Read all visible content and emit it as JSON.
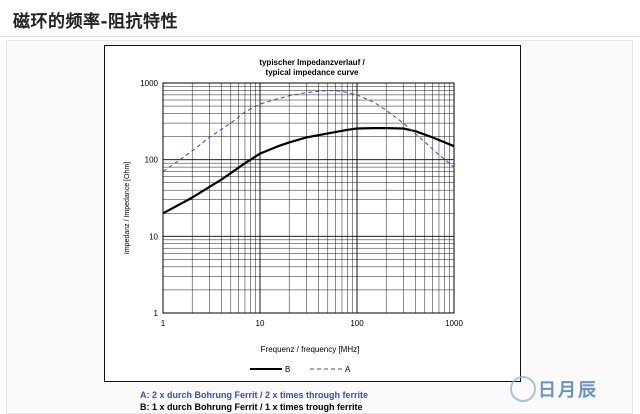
{
  "page": {
    "title": "磁环的频率-阻抗特性"
  },
  "watermark": {
    "text": "日月辰"
  },
  "chart_data": {
    "type": "line",
    "title_line1": "typischer Impedanzverlauf /",
    "title_line2": "typical impedance curve",
    "xlabel": "Frequenz / frequency [MHz]",
    "ylabel": "Impedanz / Impedance [Ohm]",
    "xscale": "log",
    "yscale": "log",
    "xlim": [
      1,
      1000
    ],
    "ylim": [
      1,
      1000
    ],
    "x_ticks": [
      "1",
      "10",
      "100",
      "1000"
    ],
    "y_ticks": [
      "1",
      "10",
      "100",
      "1000"
    ],
    "grid": true,
    "legend_position": "bottom",
    "series": [
      {
        "name": "B",
        "style": "solid",
        "color": "#000000",
        "x": [
          1,
          2,
          4,
          7,
          10,
          15,
          20,
          30,
          50,
          80,
          100,
          150,
          200,
          300,
          400,
          600,
          1000
        ],
        "y": [
          20,
          32,
          55,
          90,
          120,
          148,
          168,
          195,
          220,
          245,
          255,
          258,
          258,
          255,
          235,
          195,
          150
        ]
      },
      {
        "name": "A",
        "style": "dashed",
        "color": "#3a4fb0",
        "x": [
          1,
          1.5,
          2,
          3,
          5,
          7,
          10,
          15,
          20,
          30,
          50,
          70,
          100,
          150,
          200,
          300,
          500,
          700,
          1000
        ],
        "y": [
          70,
          100,
          130,
          195,
          300,
          420,
          530,
          620,
          680,
          750,
          800,
          780,
          700,
          560,
          440,
          300,
          170,
          115,
          80
        ]
      }
    ],
    "captions": [
      "A: 2 x durch Bohrung Ferrit  /  2 x times through ferrite",
      "B: 1 x durch Bohrung Ferrit  /  1 x times trough ferrite"
    ],
    "colors": {
      "series_a": "#3a4fb0",
      "series_b": "#000000",
      "grid": "#000000"
    }
  }
}
